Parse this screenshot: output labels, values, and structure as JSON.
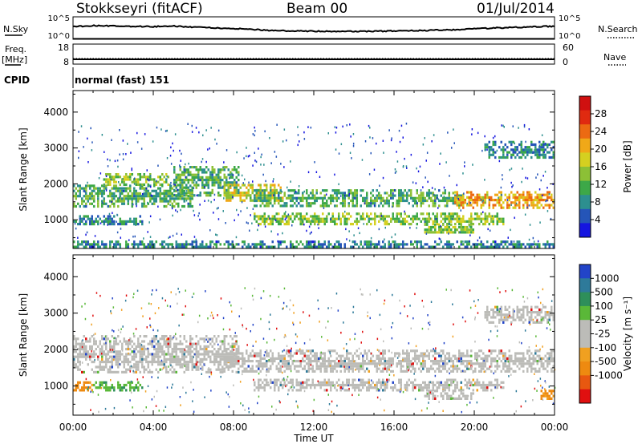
{
  "header": {
    "station": "Stokkseyri (fitACF)",
    "beam": "Beam 00",
    "date": "01/Jul/2014"
  },
  "panel_labels": {
    "nsky": "N.Sky",
    "nsearch": "N.Search",
    "freq_top": "Freq.",
    "freq_unit": "[MHz]",
    "nave": "Nave",
    "cpid": "CPID",
    "cpid_value": "normal (fast) 151"
  },
  "chart_data": [
    {
      "type": "line",
      "name": "noise-panel",
      "ylabel_left": "N.Sky",
      "ylabel_right": "N.Search",
      "left_ticks": [
        "10^5",
        "10^0"
      ],
      "right_ticks": [
        "10^5",
        "10^0"
      ],
      "x_hours": [
        0,
        1,
        2,
        3,
        4,
        5,
        6,
        7,
        8,
        9,
        10,
        11,
        12,
        13,
        14,
        15,
        16,
        17,
        18,
        19,
        20,
        21,
        22,
        23,
        24
      ],
      "nsky_level": [
        0.62,
        0.68,
        0.66,
        0.64,
        0.63,
        0.66,
        0.6,
        0.55,
        0.52,
        0.47,
        0.4,
        0.38,
        0.37,
        0.36,
        0.36,
        0.36,
        0.38,
        0.4,
        0.42,
        0.45,
        0.5,
        0.55,
        0.58,
        0.62,
        0.65
      ]
    },
    {
      "type": "line",
      "name": "frequency-panel",
      "ylabel_left": "Freq. [MHz]",
      "ylabel_right": "Nave",
      "left_ticks": [
        "18",
        "8"
      ],
      "right_ticks": [
        "60",
        "0"
      ],
      "freq_mhz": 10.4,
      "nave": 17
    },
    {
      "type": "heatmap",
      "name": "power-panel",
      "ylabel": "Slant Range [km]",
      "yticks": [
        1000,
        2000,
        3000,
        4000
      ],
      "ylim": [
        200,
        4600
      ],
      "xlim": [
        0,
        24
      ],
      "colorbar_label": "Power [dB]",
      "colorbar_ticks": [
        4,
        8,
        12,
        16,
        20,
        24,
        28
      ],
      "colorbar_colors": [
        "#1515e0",
        "#2555b8",
        "#2d8f8f",
        "#3da848",
        "#8cc036",
        "#d5d020",
        "#f0a818",
        "#ec6a12",
        "#e02a10",
        "#d01010"
      ],
      "bands": [
        {
          "start_h": 0.0,
          "end_h": 6.0,
          "range_km": [
            1380,
            1980
          ],
          "level": 3
        },
        {
          "start_h": 1.5,
          "end_h": 4.8,
          "range_km": [
            1950,
            2300
          ],
          "level": 4
        },
        {
          "start_h": 5.0,
          "end_h": 8.3,
          "range_km": [
            1700,
            2500
          ],
          "level": 3
        },
        {
          "start_h": 7.5,
          "end_h": 10.5,
          "range_km": [
            1500,
            2000
          ],
          "level": 5
        },
        {
          "start_h": 9.0,
          "end_h": 19.5,
          "range_km": [
            1400,
            1850
          ],
          "level": 3
        },
        {
          "start_h": 19.0,
          "end_h": 24.0,
          "range_km": [
            1350,
            1800
          ],
          "level": 6
        },
        {
          "start_h": 0.0,
          "end_h": 3.5,
          "range_km": [
            850,
            1130
          ],
          "level": 2
        },
        {
          "start_h": 9.0,
          "end_h": 21.5,
          "range_km": [
            900,
            1200
          ],
          "level": 4
        },
        {
          "start_h": 17.5,
          "end_h": 20.0,
          "range_km": [
            620,
            900
          ],
          "level": 4
        },
        {
          "start_h": 20.5,
          "end_h": 24.0,
          "range_km": [
            2750,
            3200
          ],
          "level": 2
        },
        {
          "start_h": 0.0,
          "end_h": 24.0,
          "range_km": [
            220,
            420
          ],
          "level": 2
        }
      ]
    },
    {
      "type": "heatmap",
      "name": "velocity-panel",
      "ylabel": "Slant Range [km]",
      "yticks": [
        1000,
        2000,
        3000,
        4000
      ],
      "ylim": [
        200,
        4600
      ],
      "xlim": [
        0,
        24
      ],
      "xticks": [
        "00:00",
        "04:00",
        "08:00",
        "12:00",
        "16:00",
        "20:00",
        "00:00"
      ],
      "xlabel": "Time UT",
      "colorbar_label": "Velocity [m s⁻¹]",
      "colorbar_ticks": [
        1000,
        500,
        100,
        25,
        -25,
        -100,
        -500,
        -1000
      ],
      "colorbar_colors": [
        "#2244c8",
        "#2e7a9a",
        "#2e8f5a",
        "#5ab838",
        "#bcbcb8",
        "#bcbcb8",
        "#f0a020",
        "#ee8a10",
        "#e85810",
        "#e01010"
      ],
      "bands": [
        {
          "start_h": 0.0,
          "end_h": 8.3,
          "range_km": [
            1380,
            2400
          ],
          "level": "ground"
        },
        {
          "start_h": 7.5,
          "end_h": 24.0,
          "range_km": [
            1400,
            2000
          ],
          "level": "ground"
        },
        {
          "start_h": 9.0,
          "end_h": 21.5,
          "range_km": [
            900,
            1200
          ],
          "level": "ground"
        },
        {
          "start_h": 17.5,
          "end_h": 20.0,
          "range_km": [
            620,
            900
          ],
          "level": "ground"
        },
        {
          "start_h": 20.5,
          "end_h": 24.0,
          "range_km": [
            2750,
            3200
          ],
          "level": "ground"
        },
        {
          "start_h": 0.0,
          "end_h": 1.0,
          "range_km": [
            850,
            1130
          ],
          "level": -500
        },
        {
          "start_h": 1.0,
          "end_h": 3.5,
          "range_km": [
            850,
            1130
          ],
          "level": 100
        },
        {
          "start_h": 23.3,
          "end_h": 24.0,
          "range_km": [
            650,
            900
          ],
          "level": -500
        }
      ]
    }
  ]
}
